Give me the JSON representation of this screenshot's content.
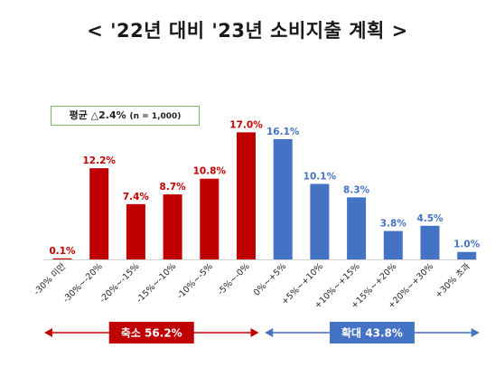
{
  "title": "< '22년 대비 '23년 소비지출 계획 >",
  "average_box": {
    "label": "평균",
    "value": "△2.4%",
    "n": "(n = 1,000)"
  },
  "colors": {
    "decrease": "#c00000",
    "increase": "#4472c4"
  },
  "chart_data": {
    "type": "bar",
    "categories": [
      "-30% 미만",
      "-30%~-20%",
      "-20%~-15%",
      "-15%~-10%",
      "-10%~-5%",
      "-5%~-0%",
      "0%~+5%",
      "+5%~+10%",
      "+10%~+15%",
      "+15%~+20%",
      "+20%~+30%",
      "+30% 초과"
    ],
    "values": [
      0.1,
      12.2,
      7.4,
      8.7,
      10.8,
      17.0,
      16.1,
      10.1,
      8.3,
      3.8,
      4.5,
      1.0
    ],
    "value_labels": [
      "0.1%",
      "12.2%",
      "7.4%",
      "8.7%",
      "10.8%",
      "17.0%",
      "16.1%",
      "10.1%",
      "8.3%",
      "3.8%",
      "4.5%",
      "1.0%"
    ],
    "groups": [
      "decrease",
      "decrease",
      "decrease",
      "decrease",
      "decrease",
      "decrease",
      "increase",
      "increase",
      "increase",
      "increase",
      "increase",
      "increase"
    ],
    "ylim": [
      0,
      18.5
    ],
    "grid": false,
    "group_totals": [
      {
        "key": "decrease",
        "label": "축소 56.2%"
      },
      {
        "key": "increase",
        "label": "확대 43.8%"
      }
    ]
  }
}
